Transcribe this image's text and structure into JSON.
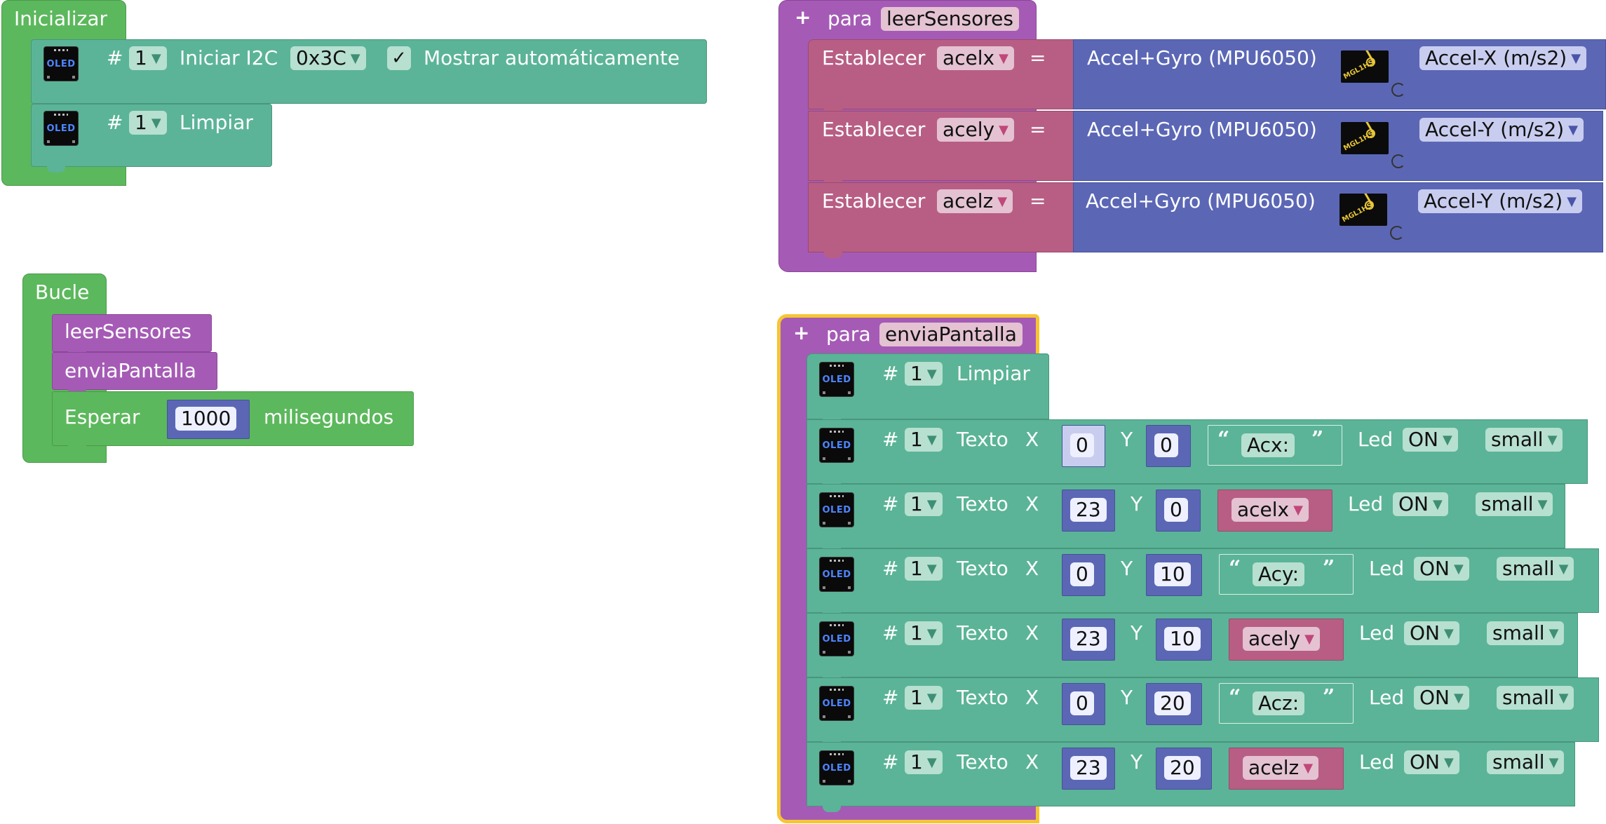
{
  "inicializar": {
    "title": "Inicializar",
    "init_row": {
      "hash": "#",
      "screen": "1",
      "action": "Iniciar I2C",
      "address": "0x3C",
      "check": "✓",
      "auto_label": "Mostrar automáticamente"
    },
    "clear_row": {
      "hash": "#",
      "screen": "1",
      "action": "Limpiar"
    }
  },
  "bucle": {
    "title": "Bucle",
    "call1": "leerSensores",
    "call2": "enviaPantalla",
    "wait_label": "Esperar",
    "wait_value": "1000",
    "wait_unit": "milisegundos"
  },
  "leer": {
    "plus": "+",
    "para": "para",
    "name": "leerSensores",
    "rows": [
      {
        "set": "Establecer",
        "var": "acelx",
        "eq": "=",
        "sensor": "Accel+Gyro (MPU6050)",
        "chip": "MGL1HS",
        "axis": "Accel-X (m/s2)"
      },
      {
        "set": "Establecer",
        "var": "acely",
        "eq": "=",
        "sensor": "Accel+Gyro (MPU6050)",
        "chip": "MGL1HS",
        "axis": "Accel-Y (m/s2)"
      },
      {
        "set": "Establecer",
        "var": "acelz",
        "eq": "=",
        "sensor": "Accel+Gyro (MPU6050)",
        "chip": "MGL1HS",
        "axis": "Accel-Y (m/s2)"
      }
    ]
  },
  "envia": {
    "plus": "+",
    "para": "para",
    "name": "enviaPantalla",
    "clear": {
      "hash": "#",
      "screen": "1",
      "action": "Limpiar"
    },
    "rows": [
      {
        "hash": "#",
        "screen": "1",
        "texto": "Texto",
        "xl": "X",
        "x": "0",
        "yl": "Y",
        "y": "0",
        "val": "Acx:",
        "led": "Led",
        "on": "ON",
        "size": "small"
      },
      {
        "hash": "#",
        "screen": "1",
        "texto": "Texto",
        "xl": "X",
        "x": "23",
        "yl": "Y",
        "y": "0",
        "val": "acelx",
        "led": "Led",
        "on": "ON",
        "size": "small"
      },
      {
        "hash": "#",
        "screen": "1",
        "texto": "Texto",
        "xl": "X",
        "x": "0",
        "yl": "Y",
        "y": "10",
        "val": "Acy:",
        "led": "Led",
        "on": "ON",
        "size": "small"
      },
      {
        "hash": "#",
        "screen": "1",
        "texto": "Texto",
        "xl": "X",
        "x": "23",
        "yl": "Y",
        "y": "10",
        "val": "acely",
        "led": "Led",
        "on": "ON",
        "size": "small"
      },
      {
        "hash": "#",
        "screen": "1",
        "texto": "Texto",
        "xl": "X",
        "x": "0",
        "yl": "Y",
        "y": "20",
        "val": "Acz:",
        "led": "Led",
        "on": "ON",
        "size": "small"
      },
      {
        "hash": "#",
        "screen": "1",
        "texto": "Texto",
        "xl": "X",
        "x": "23",
        "yl": "Y",
        "y": "20",
        "val": "acelz",
        "led": "Led",
        "on": "ON",
        "size": "small"
      }
    ]
  },
  "icons": {
    "oled_label": "OLED",
    "dropdown": "▼",
    "open_quote": "“",
    "close_quote": "”"
  },
  "colors": {
    "green": "#5cb85c",
    "teal": "#5bb497",
    "purple": "#a55bb5",
    "pink": "#b85e85",
    "blue": "#5b67b5",
    "highlight": "#f6c534"
  }
}
